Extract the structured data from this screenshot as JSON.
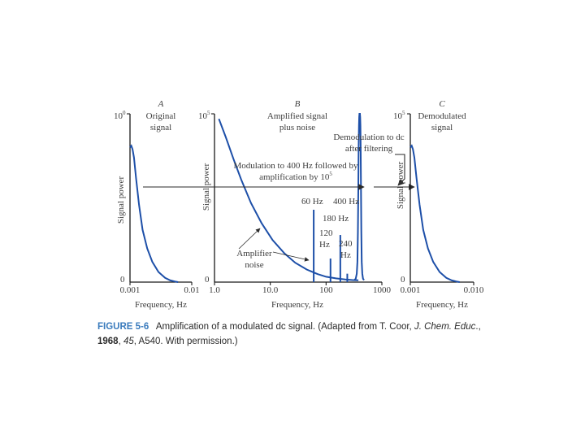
{
  "chart_data": [
    {
      "type": "line",
      "letter": "A",
      "title": "Original signal",
      "title_lines": [
        "Original",
        "signal"
      ],
      "ylabel": "Signal power",
      "y_top_label": "10",
      "y_top_exp": "0",
      "y_bottom_label": "0",
      "xlabel": "Frequency, Hz",
      "x_scale": "log",
      "xlim": [
        0.001,
        0.01
      ],
      "ticks": [
        {
          "value": 0.001,
          "label": "0.001"
        },
        {
          "value": 0.01,
          "label": "0.01"
        }
      ],
      "ylim": [
        0,
        1
      ],
      "series": [
        {
          "x": [
            0.001,
            0.00105,
            0.0011,
            0.00116,
            0.00125,
            0.0014,
            0.0016,
            0.0019,
            0.0023,
            0.0029,
            0.0037,
            0.0045,
            0.0053,
            0.006
          ],
          "y": [
            0.8,
            0.81,
            0.79,
            0.74,
            0.62,
            0.46,
            0.31,
            0.2,
            0.12,
            0.06,
            0.025,
            0.01,
            0.004,
            0.0
          ]
        }
      ]
    },
    {
      "type": "line",
      "letter": "B",
      "title": "Amplified signal plus noise",
      "title_lines": [
        "Amplified signal",
        "plus noise"
      ],
      "ylabel": "Signal power",
      "y_top_label": "10",
      "y_top_exp": "5",
      "y_bottom_label": "0",
      "xlabel": "Frequency, Hz",
      "x_scale": "log",
      "xlim": [
        1.0,
        1000
      ],
      "ticks": [
        {
          "value": 1.0,
          "label": "1.0"
        },
        {
          "value": 10.0,
          "label": "10.0"
        },
        {
          "value": 100,
          "label": "100"
        },
        {
          "value": 1000,
          "label": "1000"
        }
      ],
      "ylim": [
        0,
        1
      ],
      "series": [
        {
          "x": [
            1.2,
            1.6,
            2.2,
            3.0,
            4.5,
            7,
            11,
            18,
            28,
            45,
            70,
            100,
            150,
            220,
            300,
            380
          ],
          "y": [
            0.97,
            0.86,
            0.73,
            0.61,
            0.47,
            0.35,
            0.25,
            0.17,
            0.115,
            0.075,
            0.048,
            0.032,
            0.022,
            0.016,
            0.012,
            0.011
          ]
        },
        {
          "x": [
            320,
            340,
            355,
            365,
            372,
            378,
            383,
            388,
            392,
            396,
            400,
            404,
            408,
            412,
            417,
            422,
            428,
            435,
            445,
            460,
            480
          ],
          "y": [
            0.012,
            0.02,
            0.05,
            0.12,
            0.3,
            0.55,
            0.8,
            0.93,
            0.98,
            1.0,
            1.0,
            1.0,
            0.98,
            0.93,
            0.8,
            0.55,
            0.3,
            0.12,
            0.05,
            0.02,
            0.012
          ]
        }
      ],
      "spikes": [
        {
          "x": 60,
          "y": 0.43,
          "label": "60 Hz"
        },
        {
          "x": 120,
          "y": 0.14,
          "label": "120 Hz"
        },
        {
          "x": 180,
          "y": 0.28,
          "label": "180 Hz"
        },
        {
          "x": 240,
          "y": 0.05,
          "label": "240 Hz"
        }
      ],
      "annotations": [
        {
          "text": "400 Hz"
        },
        {
          "text": "Amplifier noise",
          "lines": [
            "Amplifier",
            "noise"
          ]
        },
        {
          "text": "Modulation to 400 Hz followed by amplification by 10⁵",
          "lines": [
            "Modulation to 400 Hz followed by",
            "amplification by 10"
          ],
          "exp": "5"
        },
        {
          "text": "Demodulation to dc after filtering",
          "lines": [
            "Demodulation to dc",
            "after filtering"
          ]
        }
      ]
    },
    {
      "type": "line",
      "letter": "C",
      "title": "Demodulated signal",
      "title_lines": [
        "Demodulated",
        "signal"
      ],
      "ylabel": "Signal power",
      "y_top_label": "10",
      "y_top_exp": "5",
      "y_bottom_label": "0",
      "xlabel": "Frequency, Hz",
      "x_scale": "log",
      "xlim": [
        0.001,
        0.01
      ],
      "ticks": [
        {
          "value": 0.001,
          "label": "0.001"
        },
        {
          "value": 0.01,
          "label": "0.010"
        }
      ],
      "ylim": [
        0,
        1
      ],
      "series": [
        {
          "x": [
            0.001,
            0.00105,
            0.0011,
            0.00116,
            0.00125,
            0.0014,
            0.0016,
            0.0019,
            0.0023,
            0.0029,
            0.0037,
            0.0045,
            0.0053,
            0.006
          ],
          "y": [
            0.8,
            0.81,
            0.79,
            0.74,
            0.62,
            0.46,
            0.31,
            0.2,
            0.12,
            0.06,
            0.025,
            0.01,
            0.004,
            0.0
          ]
        }
      ]
    }
  ],
  "caption": {
    "label": "FIGURE 5-6",
    "text_before": "Amplification of a modulated dc signal. (Adapted from T. Coor, ",
    "journal": "J. Chem. Educ",
    "text_after": "., ",
    "year": "1968",
    "sep": ", ",
    "volume": "45",
    "tail": ", A540. With permission.)"
  },
  "colors": {
    "curve": "#1d4fa8",
    "axis": "#1a1a1a",
    "text": "#3c3c3c",
    "caption_label": "#3a7bbd"
  }
}
